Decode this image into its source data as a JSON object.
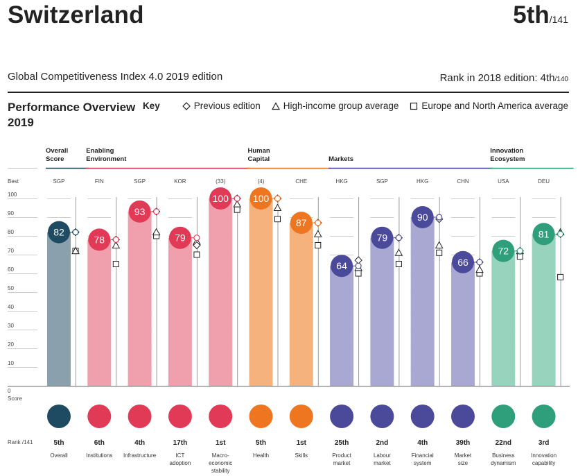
{
  "header": {
    "country": "Switzerland",
    "rank": "5th",
    "rank_of": "/141",
    "subtitle": "Global Competitiveness Index 4.0 2019 edition",
    "prev_rank_label": "Rank in 2018 edition: 4th",
    "prev_rank_of": "/140",
    "section_title": "Performance Overview 2019"
  },
  "key": {
    "label": "Key",
    "items": [
      {
        "name": "diamond",
        "label": "Previous edition"
      },
      {
        "name": "triangle",
        "label": "High-income group average"
      },
      {
        "name": "square",
        "label": "Europe and North America average"
      }
    ]
  },
  "colors": {
    "overall": "#1f4b62",
    "enabling": "#e13a57",
    "human": "#ef7620",
    "markets": "#4b4a9a",
    "innovation": "#2f9e7a",
    "overall_bar": "#8aa1ad",
    "enabling_bar": "#f0a0ac",
    "human_bar": "#f6b27d",
    "markets_bar": "#a8a8d2",
    "innovation_bar": "#97d3bd"
  },
  "labels": {
    "best": "Best",
    "score": "Score",
    "rank_axis": "Rank /141",
    "y_ticks": [
      "0",
      "10",
      "20",
      "30",
      "40",
      "50",
      "60",
      "70",
      "80",
      "90",
      "100"
    ]
  },
  "chart_data": {
    "type": "bar",
    "ylim": [
      0,
      100
    ],
    "ylabel": "Score",
    "grid": true,
    "groups": [
      {
        "name": "Overall Score",
        "lines": [
          "Overall",
          "Score"
        ],
        "color": "overall",
        "from": 0,
        "to": 0
      },
      {
        "name": "Enabling Environment",
        "lines": [
          "Enabling",
          "Environment"
        ],
        "color": "enabling",
        "from": 1,
        "to": 4
      },
      {
        "name": "Human Capital",
        "lines": [
          "Human",
          "Capital"
        ],
        "color": "human",
        "from": 5,
        "to": 6
      },
      {
        "name": "Markets",
        "lines": [
          "",
          "Markets"
        ],
        "color": "markets",
        "from": 7,
        "to": 10
      },
      {
        "name": "Innovation Ecosystem",
        "lines": [
          "Innovation",
          "Ecosystem"
        ],
        "color": "innovation",
        "from": 11,
        "to": 12
      }
    ],
    "pillars": [
      {
        "name": "Overall",
        "group": "overall",
        "score": 82,
        "best": "SGP",
        "rank": "5th",
        "prev": 82,
        "hi": 72,
        "ena": 72
      },
      {
        "name": "Institutions",
        "group": "enabling",
        "score": 78,
        "best": "FIN",
        "rank": "6th",
        "prev": 78,
        "hi": 75,
        "ena": 65
      },
      {
        "name": "Infrastructure",
        "group": "enabling",
        "score": 93,
        "best": "SGP",
        "rank": "4th",
        "prev": 93,
        "hi": 82,
        "ena": 80
      },
      {
        "name": "ICT adoption",
        "group": "enabling",
        "score": 79,
        "best": "KOR",
        "rank": "17th",
        "prev": 75,
        "hi": 77,
        "ena": 70
      },
      {
        "name": "Macro-economic stability",
        "group": "enabling",
        "score": 100,
        "best": "(33)",
        "rank": "1st",
        "prev": 100,
        "hi": 97,
        "ena": 94
      },
      {
        "name": "Health",
        "group": "human",
        "score": 100,
        "best": "(4)",
        "rank": "5th",
        "prev": 100,
        "hi": 95,
        "ena": 89
      },
      {
        "name": "Skills",
        "group": "human",
        "score": 87,
        "best": "CHE",
        "rank": "1st",
        "prev": 87,
        "hi": 81,
        "ena": 75
      },
      {
        "name": "Product market",
        "group": "markets",
        "score": 64,
        "best": "HKG",
        "rank": "25th",
        "prev": 67,
        "hi": 63,
        "ena": 60
      },
      {
        "name": "Labour market",
        "group": "markets",
        "score": 79,
        "best": "SGP",
        "rank": "2nd",
        "prev": 79,
        "hi": 71,
        "ena": 65
      },
      {
        "name": "Financial system",
        "group": "markets",
        "score": 90,
        "best": "HKG",
        "rank": "4th",
        "prev": 89,
        "hi": 75,
        "ena": 71
      },
      {
        "name": "Market size",
        "group": "markets",
        "score": 66,
        "best": "CHN",
        "rank": "39th",
        "prev": 66,
        "hi": 62,
        "ena": 60
      },
      {
        "name": "Business dynamism",
        "group": "innovation",
        "score": 72,
        "best": "USA",
        "rank": "22nd",
        "prev": 72,
        "hi": 72,
        "ena": 69
      },
      {
        "name": "Innovation capability",
        "group": "innovation",
        "score": 81,
        "best": "DEU",
        "rank": "3rd",
        "prev": 81,
        "hi": 82,
        "ena": 58
      }
    ],
    "pillar_label_lines": [
      [
        "Overall"
      ],
      [
        "Institutions"
      ],
      [
        "Infrastructure"
      ],
      [
        "ICT",
        "adoption"
      ],
      [
        "Macro-",
        "economic",
        "stability"
      ],
      [
        "Health"
      ],
      [
        "Skills"
      ],
      [
        "Product",
        "market"
      ],
      [
        "Labour",
        "market"
      ],
      [
        "Financial",
        "system"
      ],
      [
        "Market",
        "size"
      ],
      [
        "Business",
        "dynamism"
      ],
      [
        "Innovation",
        "capability"
      ]
    ]
  }
}
